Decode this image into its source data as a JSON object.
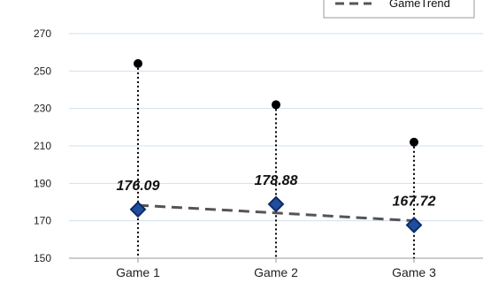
{
  "chart_data": {
    "type": "line",
    "categories": [
      "Game 1",
      "Game 2",
      "Game 3"
    ],
    "series": [
      {
        "name": "",
        "values": [
          254,
          232,
          212
        ]
      },
      {
        "name": "",
        "values": [
          176.09,
          178.88,
          167.72
        ]
      },
      {
        "name": "GameTrend",
        "values": [
          178.3,
          174.2,
          170.0
        ]
      }
    ],
    "data_labels": [
      "176.09",
      "178.88",
      "167.72"
    ],
    "ylim": [
      150,
      270
    ],
    "yticks": [
      150,
      170,
      190,
      210,
      230,
      250,
      270
    ],
    "grid": true,
    "legend": "top-right",
    "colors": {
      "high_point": "#000000",
      "average_marker": "#1F4E9C",
      "average_marker_border": "#0D2B66",
      "trend_line": "#555555",
      "gridline": "#CFE0F0"
    }
  }
}
